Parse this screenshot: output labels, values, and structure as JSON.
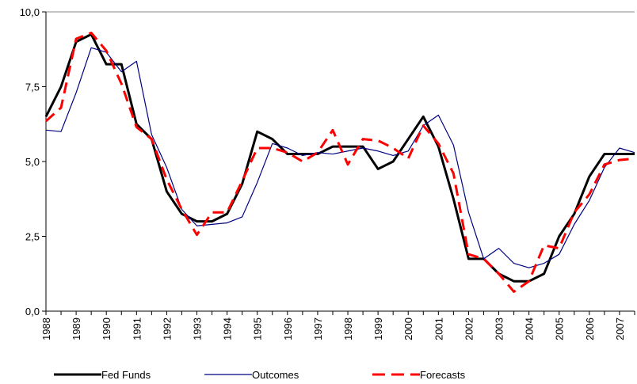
{
  "chart_data": {
    "type": "line",
    "categories": [
      "1988",
      null,
      "1989",
      null,
      "1990",
      null,
      "1991",
      null,
      "1992",
      null,
      "1993",
      null,
      "1994",
      null,
      "1995",
      null,
      "1996",
      null,
      "1997",
      null,
      "1998",
      null,
      "1999",
      null,
      "2000",
      null,
      "2001",
      null,
      "2002",
      null,
      "2003",
      null,
      "2004",
      null,
      "2005",
      null,
      "2006",
      null,
      "2007",
      null
    ],
    "series": [
      {
        "name": "Fed Funds",
        "color": "#000000",
        "values": [
          6.5,
          7.5,
          9.0,
          9.25,
          8.25,
          8.25,
          6.25,
          5.75,
          4.0,
          3.25,
          3.0,
          3.0,
          3.25,
          4.25,
          6.0,
          5.75,
          5.25,
          5.25,
          5.25,
          5.5,
          5.5,
          5.5,
          4.75,
          5.0,
          5.75,
          6.5,
          5.5,
          3.75,
          1.75,
          1.75,
          1.25,
          1.0,
          1.0,
          1.25,
          2.5,
          3.25,
          4.5,
          5.25,
          5.25,
          5.25
        ]
      },
      {
        "name": "Outcomes",
        "color": "#000080",
        "values": [
          6.05,
          6.0,
          7.3,
          8.8,
          8.65,
          8.0,
          8.35,
          5.9,
          4.8,
          3.4,
          2.85,
          2.9,
          2.95,
          3.15,
          4.3,
          5.6,
          5.45,
          5.2,
          5.3,
          5.25,
          5.35,
          5.45,
          5.35,
          5.2,
          5.35,
          6.2,
          6.55,
          5.55,
          3.3,
          1.75,
          2.1,
          1.6,
          1.45,
          1.6,
          1.9,
          2.9,
          3.7,
          4.8,
          5.45,
          5.3
        ]
      },
      {
        "name": "Forecasts",
        "color": "#ff0000",
        "values": [
          6.35,
          6.8,
          9.1,
          9.3,
          8.7,
          7.6,
          6.15,
          5.75,
          4.4,
          3.4,
          2.55,
          3.3,
          3.3,
          4.35,
          5.45,
          5.45,
          5.3,
          5.0,
          5.3,
          6.05,
          4.9,
          5.75,
          5.7,
          5.45,
          5.1,
          6.2,
          5.6,
          4.6,
          1.9,
          1.75,
          1.25,
          0.65,
          1.0,
          2.2,
          2.1,
          3.3,
          3.9,
          4.9,
          5.05,
          5.1
        ]
      }
    ],
    "ylim": [
      0,
      10
    ],
    "yticks": [
      {
        "value": 0,
        "label": "0,0"
      },
      {
        "value": 2.5,
        "label": "2,5"
      },
      {
        "value": 5,
        "label": "5,0"
      },
      {
        "value": 7.5,
        "label": "7,5"
      },
      {
        "value": 10,
        "label": "10,0"
      }
    ],
    "legend": "bottom"
  }
}
